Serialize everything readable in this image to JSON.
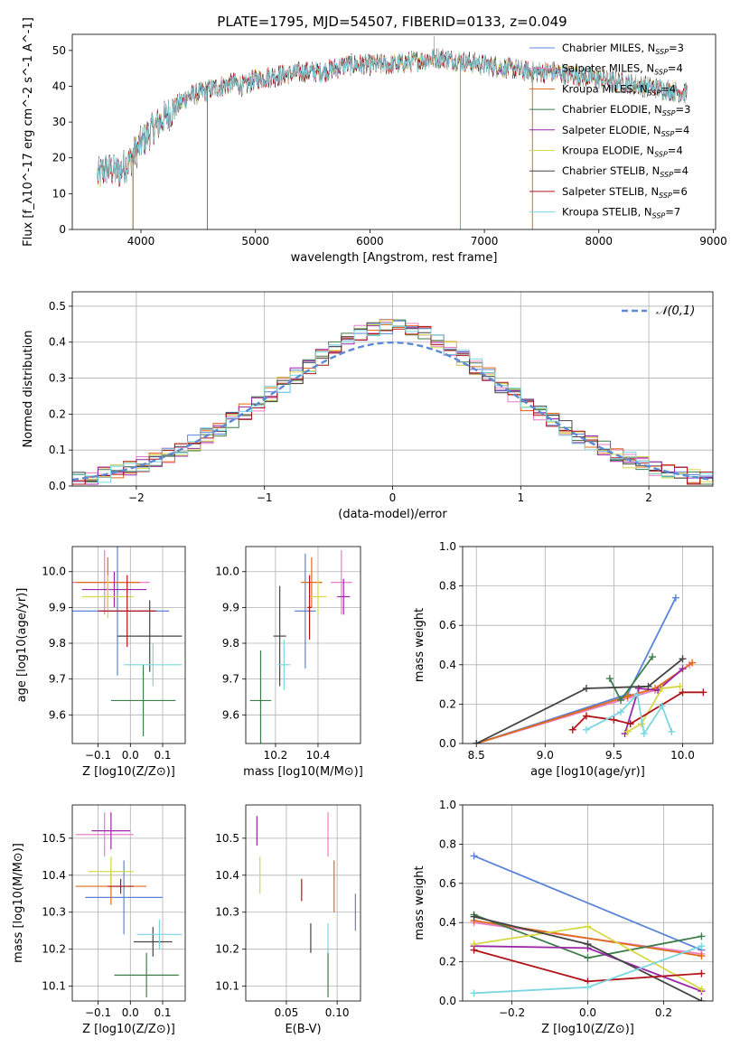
{
  "figure": {
    "title": "PLATE=1795, MJD=54507, FIBERID=0133, z=0.049"
  },
  "models": [
    {
      "name": "Chabrier MILES",
      "nssp": "3",
      "color": "#5b84d8"
    },
    {
      "name": "Salpeter MILES",
      "nssp": "4",
      "color": "#e97fc7"
    },
    {
      "name": "Kroupa MILES",
      "nssp": "4",
      "color": "#e06b17"
    },
    {
      "name": "Chabrier ELODIE",
      "nssp": "3",
      "color": "#3f7d4b"
    },
    {
      "name": "Salpeter ELODIE",
      "nssp": "4",
      "color": "#9b27a8"
    },
    {
      "name": "Kroupa ELODIE",
      "nssp": "4",
      "color": "#d6d846"
    },
    {
      "name": "Chabrier STELIB",
      "nssp": "4",
      "color": "#444444"
    },
    {
      "name": "Salpeter STELIB",
      "nssp": "6",
      "color": "#b0151b"
    },
    {
      "name": "Kroupa STELIB",
      "nssp": "7",
      "color": "#7bd6e0"
    }
  ],
  "chart_data": [
    {
      "id": "spectrum",
      "type": "line",
      "xlabel": "wavelength [Angstrom, rest frame]",
      "ylabel": "Flux [f_λ10^-17 erg cm^-2 s^-1 A^-1]",
      "xlim": [
        3400,
        9020
      ],
      "ylim": [
        0,
        54.5
      ],
      "xticks": [
        4000,
        5000,
        6000,
        7000,
        8000,
        9000
      ],
      "yticks": [
        0,
        10,
        20,
        30,
        40,
        50
      ],
      "legend_position": "top-right",
      "x_range_data": [
        3620,
        8770
      ],
      "continuum": [
        [
          3620,
          15
        ],
        [
          3700,
          17
        ],
        [
          3800,
          16
        ],
        [
          3900,
          19
        ],
        [
          4000,
          24
        ],
        [
          4100,
          28
        ],
        [
          4200,
          31
        ],
        [
          4300,
          34
        ],
        [
          4400,
          37
        ],
        [
          4500,
          38
        ],
        [
          4600,
          39
        ],
        [
          4700,
          40
        ],
        [
          4800,
          41
        ],
        [
          4900,
          40
        ],
        [
          5000,
          42
        ],
        [
          5200,
          43
        ],
        [
          5400,
          44
        ],
        [
          5600,
          44
        ],
        [
          5800,
          46
        ],
        [
          6000,
          46
        ],
        [
          6200,
          46
        ],
        [
          6400,
          47
        ],
        [
          6600,
          48
        ],
        [
          6800,
          47
        ],
        [
          7000,
          46
        ],
        [
          7200,
          45
        ],
        [
          7400,
          44
        ],
        [
          7600,
          44
        ],
        [
          7800,
          43
        ],
        [
          8000,
          42
        ],
        [
          8200,
          41
        ],
        [
          8400,
          40
        ],
        [
          8600,
          39
        ],
        [
          8770,
          38
        ]
      ],
      "drops": [
        [
          3930,
          0
        ],
        [
          4580,
          0
        ],
        [
          6790,
          0
        ],
        [
          7420,
          0
        ]
      ],
      "spike": [
        6560,
        54
      ]
    },
    {
      "id": "residuals",
      "type": "line",
      "xlabel": "(data-model)/error",
      "ylabel": "Normed distribution",
      "xlim": [
        -2.5,
        2.5
      ],
      "ylim": [
        0,
        0.54
      ],
      "xticks": [
        -2,
        -1,
        0,
        1,
        2
      ],
      "yticks": [
        0.0,
        0.1,
        0.2,
        0.3,
        0.4,
        0.5
      ],
      "grid": true,
      "legend_position": "top-right",
      "reference_label": "𝒩(0,1)",
      "reference_color": "#5b8ad6",
      "bin_width": 0.1
    },
    {
      "id": "age_vs_Z",
      "type": "scatter",
      "xlabel": "Z [log10(Z/Z⊙)]",
      "ylabel": "age  [log10(age/yr)]",
      "xlim": [
        -0.18,
        0.17
      ],
      "ylim": [
        9.52,
        10.07
      ],
      "xticks": [
        -0.1,
        0.0,
        0.1
      ],
      "yticks": [
        9.6,
        9.7,
        9.8,
        9.9,
        10.0
      ],
      "grid": true,
      "points": [
        {
          "model": 0,
          "x": -0.04,
          "y": 9.89,
          "xerr": 0.16,
          "yerr": 0.18
        },
        {
          "model": 1,
          "x": -0.08,
          "y": 9.97,
          "xerr": 0.14,
          "yerr": 0.09
        },
        {
          "model": 2,
          "x": -0.07,
          "y": 9.97,
          "xerr": 0.1,
          "yerr": 0.07
        },
        {
          "model": 3,
          "x": 0.04,
          "y": 9.64,
          "xerr": 0.1,
          "yerr": 0.1
        },
        {
          "model": 4,
          "x": -0.05,
          "y": 9.95,
          "xerr": 0.1,
          "yerr": 0.05
        },
        {
          "model": 5,
          "x": -0.07,
          "y": 9.93,
          "xerr": 0.08,
          "yerr": 0.06
        },
        {
          "model": 6,
          "x": 0.06,
          "y": 9.82,
          "xerr": 0.1,
          "yerr": 0.1
        },
        {
          "model": 7,
          "x": -0.01,
          "y": 9.89,
          "xerr": 0.09,
          "yerr": 0.1
        },
        {
          "model": 8,
          "x": 0.07,
          "y": 9.74,
          "xerr": 0.09,
          "yerr": 0.06
        }
      ]
    },
    {
      "id": "age_vs_mass",
      "type": "scatter",
      "xlabel": "mass [log10(M/M⊙)]",
      "ylabel": "",
      "xlim": [
        10.06,
        10.6
      ],
      "ylim": [
        9.52,
        10.07
      ],
      "xticks": [
        10.2,
        10.4
      ],
      "yticks": [
        9.6,
        9.7,
        9.8,
        9.9,
        10.0
      ],
      "grid": true,
      "points": [
        {
          "model": 0,
          "x": 10.34,
          "y": 9.89,
          "xerr": 0.05,
          "yerr": 0.16
        },
        {
          "model": 1,
          "x": 10.51,
          "y": 9.97,
          "xerr": 0.05,
          "yerr": 0.09
        },
        {
          "model": 2,
          "x": 10.37,
          "y": 9.97,
          "xerr": 0.05,
          "yerr": 0.07
        },
        {
          "model": 3,
          "x": 10.13,
          "y": 9.64,
          "xerr": 0.05,
          "yerr": 0.14
        },
        {
          "model": 4,
          "x": 10.52,
          "y": 9.93,
          "xerr": 0.03,
          "yerr": 0.05
        },
        {
          "model": 5,
          "x": 10.4,
          "y": 9.93,
          "xerr": 0.04,
          "yerr": 0.05
        },
        {
          "model": 6,
          "x": 10.22,
          "y": 9.82,
          "xerr": 0.03,
          "yerr": 0.14
        },
        {
          "model": 7,
          "x": 10.36,
          "y": 9.9,
          "xerr": 0.01,
          "yerr": 0.09
        },
        {
          "model": 8,
          "x": 10.24,
          "y": 9.74,
          "xerr": 0.03,
          "yerr": 0.07
        }
      ]
    },
    {
      "id": "massweight_vs_age",
      "type": "line",
      "xlabel": "age  [log10(age/yr)]",
      "ylabel": "mass weight",
      "xlim": [
        8.4,
        10.22
      ],
      "ylim": [
        0,
        1.0
      ],
      "xticks": [
        8.5,
        9.0,
        9.5,
        10.0
      ],
      "yticks": [
        0.0,
        0.2,
        0.4,
        0.6,
        0.8,
        1.0
      ],
      "grid": true,
      "series": [
        {
          "model": 0,
          "x": [
            8.5,
            9.6,
            9.95
          ],
          "y": [
            0.0,
            0.25,
            0.74
          ]
        },
        {
          "model": 1,
          "x": [
            8.5,
            9.6,
            9.8,
            10.05
          ],
          "y": [
            0.0,
            0.23,
            0.27,
            0.4
          ]
        },
        {
          "model": 2,
          "x": [
            8.5,
            9.6,
            9.8,
            10.07
          ],
          "y": [
            0.0,
            0.24,
            0.28,
            0.41
          ]
        },
        {
          "model": 3,
          "x": [
            9.47,
            9.55,
            9.78
          ],
          "y": [
            0.33,
            0.22,
            0.44
          ]
        },
        {
          "model": 4,
          "x": [
            9.58,
            9.68,
            9.82,
            10.0
          ],
          "y": [
            0.05,
            0.28,
            0.27,
            0.38
          ]
        },
        {
          "model": 5,
          "x": [
            9.6,
            9.7,
            9.85,
            9.98
          ],
          "y": [
            0.06,
            0.1,
            0.28,
            0.29
          ]
        },
        {
          "model": 6,
          "x": [
            8.5,
            9.3,
            9.75,
            10.0
          ],
          "y": [
            0.0,
            0.28,
            0.29,
            0.43
          ]
        },
        {
          "model": 7,
          "x": [
            9.2,
            9.3,
            9.5,
            9.62,
            10.0,
            10.15
          ],
          "y": [
            0.07,
            0.14,
            0.12,
            0.1,
            0.26,
            0.26
          ]
        },
        {
          "model": 8,
          "x": [
            9.3,
            9.55,
            9.67,
            9.72,
            9.85,
            9.92
          ],
          "y": [
            0.07,
            0.16,
            0.25,
            0.05,
            0.19,
            0.06
          ]
        }
      ]
    },
    {
      "id": "mass_vs_Z",
      "type": "scatter",
      "xlabel": "Z [log10(Z/Z⊙)]",
      "ylabel": "mass [log10(M/M⊙)]",
      "xlim": [
        -0.18,
        0.17
      ],
      "ylim": [
        10.06,
        10.59
      ],
      "xticks": [
        -0.1,
        0.0,
        0.1
      ],
      "yticks": [
        10.1,
        10.2,
        10.3,
        10.4,
        10.5
      ],
      "grid": true,
      "points": [
        {
          "model": 0,
          "x": -0.02,
          "y": 10.34,
          "xerr": 0.12,
          "yerr": 0.1
        },
        {
          "model": 1,
          "x": -0.08,
          "y": 10.51,
          "xerr": 0.09,
          "yerr": 0.06
        },
        {
          "model": 2,
          "x": -0.06,
          "y": 10.37,
          "xerr": 0.11,
          "yerr": 0.05
        },
        {
          "model": 3,
          "x": 0.05,
          "y": 10.13,
          "xerr": 0.1,
          "yerr": 0.06
        },
        {
          "model": 4,
          "x": -0.06,
          "y": 10.52,
          "xerr": 0.06,
          "yerr": 0.05
        },
        {
          "model": 5,
          "x": -0.06,
          "y": 10.41,
          "xerr": 0.07,
          "yerr": 0.04
        },
        {
          "model": 6,
          "x": 0.07,
          "y": 10.22,
          "xerr": 0.06,
          "yerr": 0.04
        },
        {
          "model": 7,
          "x": -0.03,
          "y": 10.37,
          "xerr": 0.04,
          "yerr": 0.02
        },
        {
          "model": 8,
          "x": 0.09,
          "y": 10.24,
          "xerr": 0.07,
          "yerr": 0.04
        }
      ]
    },
    {
      "id": "mass_vs_ebv",
      "type": "scatter",
      "xlabel": "E(B-V)",
      "ylabel": "",
      "xlim": [
        0.01,
        0.123
      ],
      "ylim": [
        10.06,
        10.59
      ],
      "xticks": [
        0.05,
        0.1
      ],
      "yticks": [
        10.1,
        10.2,
        10.3,
        10.4,
        10.5
      ],
      "grid": true,
      "points": [
        {
          "model": 0,
          "x": 0.118,
          "y": 10.3,
          "xerr": 0.0,
          "yerr": 0.05
        },
        {
          "model": 1,
          "x": 0.091,
          "y": 10.51,
          "xerr": 0.0,
          "yerr": 0.06
        },
        {
          "model": 2,
          "x": 0.097,
          "y": 10.37,
          "xerr": 0.0,
          "yerr": 0.07
        },
        {
          "model": 3,
          "x": 0.091,
          "y": 10.13,
          "xerr": 0.0,
          "yerr": 0.06
        },
        {
          "model": 4,
          "x": 0.021,
          "y": 10.52,
          "xerr": 0.0,
          "yerr": 0.04
        },
        {
          "model": 5,
          "x": 0.024,
          "y": 10.4,
          "xerr": 0.0,
          "yerr": 0.05
        },
        {
          "model": 6,
          "x": 0.074,
          "y": 10.23,
          "xerr": 0.0,
          "yerr": 0.04
        },
        {
          "model": 7,
          "x": 0.065,
          "y": 10.36,
          "xerr": 0.0,
          "yerr": 0.03
        },
        {
          "model": 8,
          "x": 0.091,
          "y": 10.23,
          "xerr": 0.0,
          "yerr": 0.04
        }
      ]
    },
    {
      "id": "massweight_vs_Z",
      "type": "line",
      "xlabel": "Z [log10(Z/Z⊙)]",
      "ylabel": "mass weight",
      "xlim": [
        -0.33,
        0.33
      ],
      "ylim": [
        0,
        1.0
      ],
      "xticks": [
        -0.2,
        0.0,
        0.2
      ],
      "yticks": [
        0.0,
        0.2,
        0.4,
        0.6,
        0.8,
        1.0
      ],
      "grid": true,
      "series": [
        {
          "model": 0,
          "x": [
            -0.3,
            0.3
          ],
          "y": [
            0.74,
            0.26
          ]
        },
        {
          "model": 1,
          "x": [
            -0.3,
            0.3
          ],
          "y": [
            0.4,
            0.24
          ]
        },
        {
          "model": 2,
          "x": [
            -0.3,
            0.3
          ],
          "y": [
            0.41,
            0.23
          ]
        },
        {
          "model": 3,
          "x": [
            -0.3,
            0.0,
            0.3
          ],
          "y": [
            0.44,
            0.22,
            0.33
          ]
        },
        {
          "model": 4,
          "x": [
            -0.3,
            0.0,
            0.3
          ],
          "y": [
            0.28,
            0.27,
            0.05
          ]
        },
        {
          "model": 5,
          "x": [
            -0.3,
            0.0,
            0.3
          ],
          "y": [
            0.29,
            0.38,
            0.06
          ]
        },
        {
          "model": 6,
          "x": [
            -0.3,
            0.0,
            0.3
          ],
          "y": [
            0.43,
            0.29,
            0.0
          ]
        },
        {
          "model": 7,
          "x": [
            -0.3,
            0.0,
            0.3
          ],
          "y": [
            0.26,
            0.1,
            0.14
          ]
        },
        {
          "model": 8,
          "x": [
            -0.3,
            0.0,
            0.3
          ],
          "y": [
            0.04,
            0.07,
            0.28
          ]
        }
      ]
    }
  ]
}
